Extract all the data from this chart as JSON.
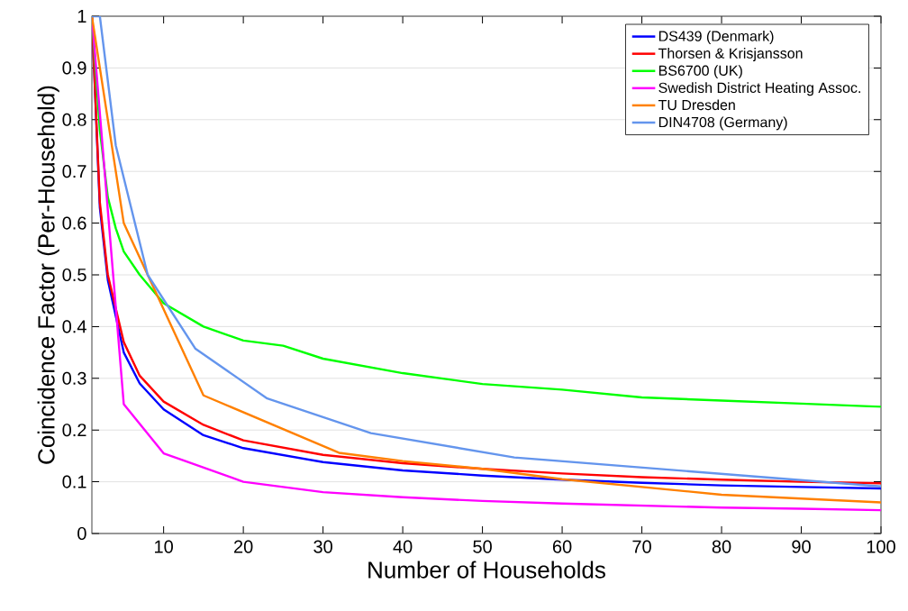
{
  "chart_data": {
    "type": "line",
    "xlabel": "Number of Households",
    "ylabel": "Coincidence Factor (Per-Household)",
    "xlim": [
      1,
      100
    ],
    "xticks": [
      10,
      20,
      30,
      40,
      50,
      60,
      70,
      80,
      90,
      100
    ],
    "ylim": [
      0,
      1
    ],
    "yticks": [
      0,
      0.1,
      0.2,
      0.3,
      0.4,
      0.5,
      0.6,
      0.7,
      0.8,
      0.9,
      1
    ],
    "grid": "y",
    "legend": "top right",
    "marker": "none",
    "line_style": "solid",
    "series": [
      {
        "name": "DS439 (Denmark)",
        "color": "#0000ff",
        "x": [
          1,
          2,
          3,
          5,
          7,
          10,
          15,
          20,
          30,
          40,
          50,
          60,
          70,
          80,
          90,
          100
        ],
        "values": [
          1.0,
          0.63,
          0.49,
          0.35,
          0.29,
          0.24,
          0.19,
          0.165,
          0.138,
          0.122,
          0.112,
          0.104,
          0.098,
          0.093,
          0.09,
          0.087
        ]
      },
      {
        "name": "Thorsen & Krisjansson",
        "color": "#ff0000",
        "x": [
          1,
          2,
          3,
          5,
          7,
          10,
          15,
          20,
          30,
          40,
          50,
          60,
          70,
          80,
          90,
          100
        ],
        "values": [
          1.0,
          0.64,
          0.5,
          0.37,
          0.305,
          0.255,
          0.21,
          0.18,
          0.152,
          0.136,
          0.125,
          0.116,
          0.109,
          0.104,
          0.1,
          0.097
        ]
      },
      {
        "name": "BS6700 (UK)",
        "color": "#00ff00",
        "x": [
          1,
          2,
          3,
          4,
          5,
          7,
          10,
          15,
          20,
          25,
          30,
          40,
          50,
          60,
          70,
          80,
          90,
          100
        ],
        "values": [
          1.0,
          0.78,
          0.65,
          0.59,
          0.545,
          0.5,
          0.445,
          0.4,
          0.373,
          0.363,
          0.338,
          0.31,
          0.289,
          0.278,
          0.263,
          0.257,
          0.251,
          0.245
        ]
      },
      {
        "name": "Swedish District Heating Assoc.",
        "color": "#ff00ff",
        "x": [
          1,
          5,
          10,
          20,
          30,
          40,
          50,
          60,
          70,
          80,
          90,
          100
        ],
        "values": [
          1.0,
          0.25,
          0.155,
          0.1,
          0.08,
          0.07,
          0.063,
          0.058,
          0.054,
          0.05,
          0.048,
          0.045
        ]
      },
      {
        "name": "TU Dresden",
        "color": "#ff8000",
        "x": [
          1,
          5,
          15,
          32,
          40,
          50,
          60,
          70,
          80,
          100
        ],
        "values": [
          1.0,
          0.6,
          0.267,
          0.156,
          0.14,
          0.125,
          0.105,
          0.09,
          0.075,
          0.06
        ]
      },
      {
        "name": "DIN4708 (Germany)",
        "color": "#6495ed",
        "x": [
          1,
          2,
          4,
          8,
          14,
          23,
          36,
          54,
          100
        ],
        "values": [
          1.0,
          1.0,
          0.75,
          0.5,
          0.357,
          0.261,
          0.194,
          0.147,
          0.091
        ]
      }
    ]
  }
}
